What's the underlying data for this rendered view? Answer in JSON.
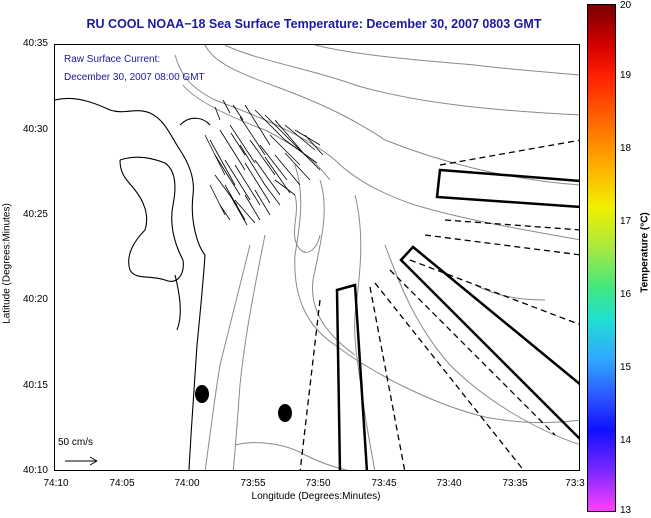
{
  "title": "RU COOL  NOAA−18  Sea Surface Temperature:  December 30, 2007 0803 GMT",
  "info": {
    "line1": "Raw Surface Current:",
    "line2": "December 30, 2007 08:00 GMT"
  },
  "axes": {
    "xlabel": "Longitude (Degrees:Minutes)",
    "ylabel": "Latitude (Degrees:Minutes)",
    "xticks": [
      "74:10",
      "74:05",
      "74:00",
      "73:55",
      "73:50",
      "73:45",
      "73:40",
      "73:35",
      "73:3"
    ],
    "yticks": [
      "40:35",
      "40:30",
      "40:25",
      "40:20",
      "40:15",
      "40:10"
    ]
  },
  "colorbar": {
    "label": "Temperature (°C)",
    "ticks": [
      "20",
      "19",
      "18",
      "17",
      "16",
      "15",
      "14",
      "13"
    ]
  },
  "scale": {
    "label": "50 cm/s"
  }
}
